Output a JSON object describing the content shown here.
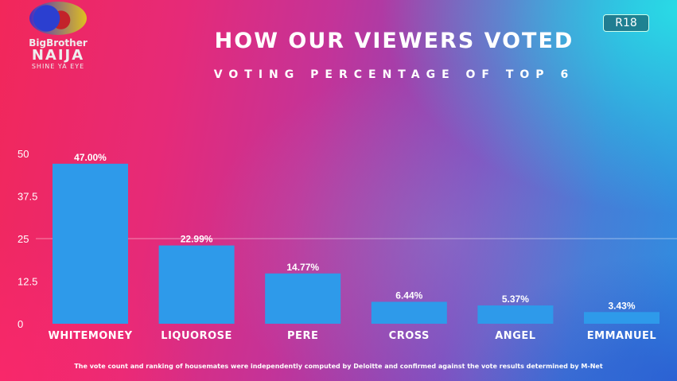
{
  "logo": {
    "line1": "BigBrother",
    "line2": "NAIJA",
    "line3": "SHINE YA EYE"
  },
  "badge": "R18",
  "footnote": "The vote count and ranking of housemates were independently computed by Deloitte and confirmed against the vote results determined by M-Net",
  "chart_data": {
    "type": "bar",
    "title": "HOW OUR VIEWERS VOTED",
    "subtitle": "VOTING PERCENTAGE OF TOP 6",
    "categories": [
      "WHITEMONEY",
      "LIQUOROSE",
      "PERE",
      "CROSS",
      "ANGEL",
      "EMMANUEL"
    ],
    "values": [
      47.0,
      22.99,
      14.77,
      6.44,
      5.37,
      3.43
    ],
    "data_labels": [
      "47.00%",
      "22.99%",
      "14.77%",
      "6.44%",
      "5.37%",
      "3.43%"
    ],
    "yticks": [
      0,
      12.5,
      25,
      37.5,
      50
    ],
    "ytick_labels": [
      "0",
      "12.5",
      "25",
      "37.5",
      "50"
    ],
    "ylim": [
      0,
      50
    ],
    "grid": "y=25 only",
    "xlabel": "",
    "ylabel": "",
    "bar_color": "#2e9aea"
  }
}
